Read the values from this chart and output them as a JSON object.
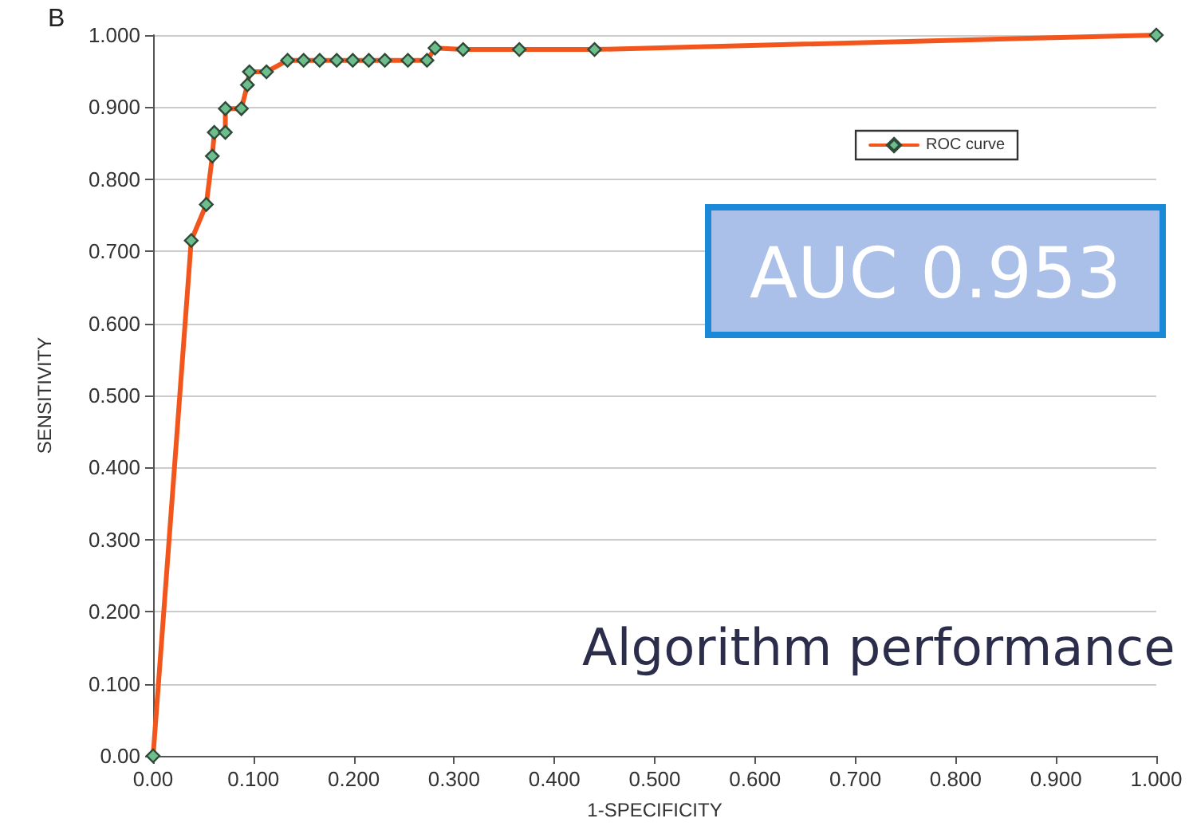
{
  "chart_data": {
    "type": "line",
    "xlabel": "1-SPECIFICITY",
    "ylabel": "SENSITIVITY",
    "annotations": [
      "B",
      "AUC 0.953",
      "Algorithm performance"
    ],
    "series": [
      {
        "name": "ROC curve",
        "color": "#f2561d",
        "x": [
          0,
          0.038,
          0.053,
          0.059,
          0.061,
          0.072,
          0.072,
          0.088,
          0.094,
          0.096,
          0.113,
          0.134,
          0.15,
          0.166,
          0.183,
          0.199,
          0.215,
          0.231,
          0.254,
          0.273,
          0.281,
          0.309,
          0.365,
          0.44,
          1
        ],
        "values": [
          0,
          0.715,
          0.765,
          0.832,
          0.865,
          0.865,
          0.898,
          0.898,
          0.931,
          0.949,
          0.949,
          0.965,
          0.965,
          0.965,
          0.965,
          0.965,
          0.965,
          0.965,
          0.965,
          0.965,
          0.982,
          0.98,
          0.98,
          0.98,
          1
        ]
      }
    ],
    "xlim": [
      0,
      1
    ],
    "ylim": [
      0,
      1
    ],
    "xticks": [
      {
        "value": 0,
        "label": "0.00"
      },
      {
        "value": 0.1,
        "label": "0.100"
      },
      {
        "value": 0.2,
        "label": "0.200"
      },
      {
        "value": 0.3,
        "label": "0.300"
      },
      {
        "value": 0.4,
        "label": "0.400"
      },
      {
        "value": 0.5,
        "label": "0.500"
      },
      {
        "value": 0.6,
        "label": "0.600"
      },
      {
        "value": 0.7,
        "label": "0.700"
      },
      {
        "value": 0.8,
        "label": "0.800"
      },
      {
        "value": 0.9,
        "label": "0.900"
      },
      {
        "value": 1,
        "label": "1.000"
      }
    ],
    "yticks": [
      {
        "value": 0,
        "label": "0.00"
      },
      {
        "value": 0.1,
        "label": "0.100"
      },
      {
        "value": 0.2,
        "label": "0.200"
      },
      {
        "value": 0.3,
        "label": "0.300"
      },
      {
        "value": 0.4,
        "label": "0.400"
      },
      {
        "value": 0.5,
        "label": "0.500"
      },
      {
        "value": 0.6,
        "label": "0.600"
      },
      {
        "value": 0.7,
        "label": "0.700"
      },
      {
        "value": 0.8,
        "label": "0.800"
      },
      {
        "value": 0.9,
        "label": "0.900"
      },
      {
        "value": 1,
        "label": "1.000"
      }
    ],
    "grid": "y",
    "legend": "top right",
    "marker": "diamond",
    "line_style": "solid"
  }
}
